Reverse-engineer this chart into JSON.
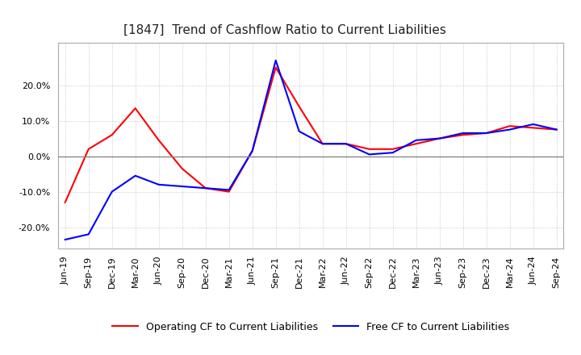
{
  "title": "[1847]  Trend of Cashflow Ratio to Current Liabilities",
  "x_labels": [
    "Jun-19",
    "Sep-19",
    "Dec-19",
    "Mar-20",
    "Jun-20",
    "Sep-20",
    "Dec-20",
    "Mar-21",
    "Jun-21",
    "Sep-21",
    "Dec-21",
    "Mar-22",
    "Jun-22",
    "Sep-22",
    "Dec-22",
    "Mar-23",
    "Jun-23",
    "Sep-23",
    "Dec-23",
    "Mar-24",
    "Jun-24",
    "Sep-24"
  ],
  "operating_cf": [
    -13.0,
    2.0,
    6.0,
    13.5,
    4.5,
    -3.5,
    -9.0,
    -10.0,
    1.5,
    25.0,
    14.0,
    3.5,
    3.5,
    2.0,
    2.0,
    3.5,
    5.0,
    6.0,
    6.5,
    8.5,
    8.0,
    7.5
  ],
  "free_cf": [
    -23.5,
    -22.0,
    -10.0,
    -5.5,
    -8.0,
    -8.5,
    -9.0,
    -9.5,
    1.5,
    27.0,
    7.0,
    3.5,
    3.5,
    0.5,
    1.0,
    4.5,
    5.0,
    6.5,
    6.5,
    7.5,
    9.0,
    7.5
  ],
  "ylim": [
    -26,
    32
  ],
  "yticks": [
    -20.0,
    -10.0,
    0.0,
    10.0,
    20.0
  ],
  "operating_color": "#ff0000",
  "free_color": "#0000ff",
  "grid_color": "#bbbbbb",
  "zero_line_color": "#888888",
  "background_color": "#ffffff",
  "plot_bg_color": "#ffffff",
  "title_fontsize": 11,
  "legend_fontsize": 9,
  "tick_fontsize": 8
}
